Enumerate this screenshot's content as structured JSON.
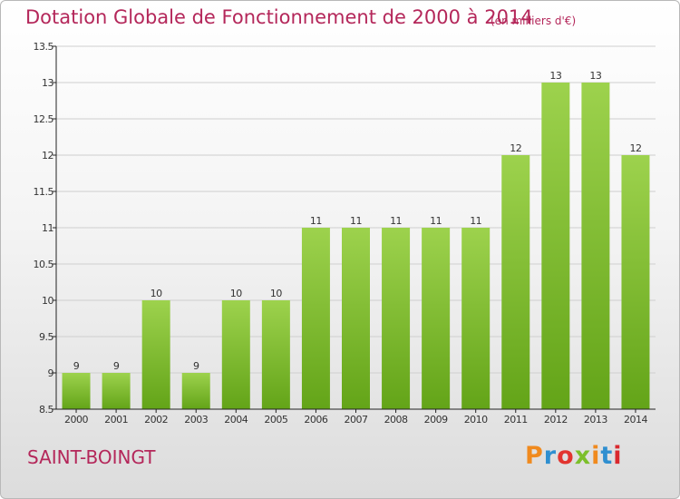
{
  "header": {
    "title": "Dotation Globale de Fonctionnement de 2000 à 2014",
    "subtitle": "(en milliers d'€)"
  },
  "footer": {
    "commune": "SAINT-BOINGT",
    "logo_text": "Proxiti",
    "logo_colors": [
      "#f08a1e",
      "#2f8fd0",
      "#e2342f",
      "#7cbf2a",
      "#f08a1e",
      "#2f8fd0",
      "#d9292e"
    ]
  },
  "colors": {
    "bar_light": "#9dd24d",
    "bar_dark": "#63a418",
    "axis": "#222222",
    "grid": "#cfcfcf",
    "title": "#b4275a"
  },
  "chart_data": {
    "type": "bar",
    "categories": [
      "2000",
      "2001",
      "2002",
      "2003",
      "2004",
      "2005",
      "2006",
      "2007",
      "2008",
      "2009",
      "2010",
      "2011",
      "2012",
      "2013",
      "2014"
    ],
    "values": [
      9,
      9,
      10,
      9,
      10,
      10,
      11,
      11,
      11,
      11,
      11,
      12,
      13,
      13,
      12
    ],
    "data_labels": [
      "9",
      "9",
      "10",
      "9",
      "10",
      "10",
      "11",
      "11",
      "11",
      "11",
      "11",
      "12",
      "13",
      "13",
      "12"
    ],
    "ylim": [
      8.5,
      13.5
    ],
    "yticks": [
      "8.5",
      "9",
      "9.5",
      "10",
      "10.5",
      "11",
      "11.5",
      "12",
      "12.5",
      "13",
      "13.5"
    ],
    "grid": true
  }
}
